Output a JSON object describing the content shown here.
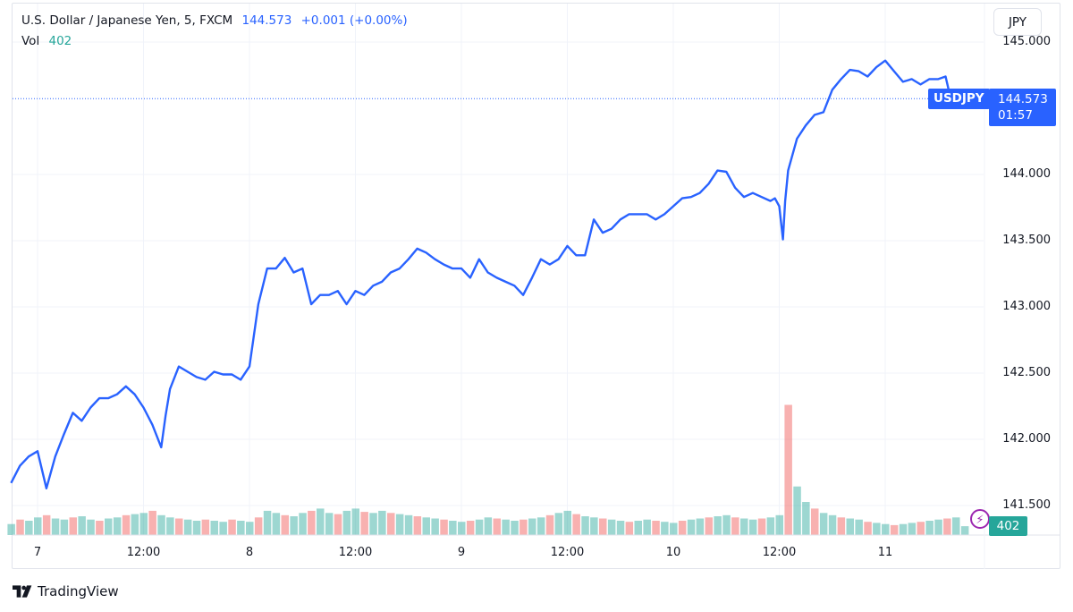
{
  "legend": {
    "title": "U.S. Dollar / Japanese Yen, 5, FXCM",
    "last": "144.573",
    "change": "+0.001 (+0.00%)",
    "vol_label": "Vol",
    "vol_value": "402"
  },
  "currency_button": "JPY",
  "symbol_tag": "USDJPY",
  "price_tag": {
    "price": "144.573",
    "countdown": "01:57"
  },
  "volume_tag": "402",
  "branding": "TradingView",
  "colors": {
    "line": "#2962ff",
    "up_volume": "#26a69a",
    "down_volume": "#ef5350",
    "grid": "#f0f3fa"
  },
  "icons": {
    "volume_alert": "lightning-bolt-icon",
    "logo": "tradingview-logo-icon"
  },
  "chart_data": {
    "type": "line",
    "title": "U.S. Dollar / Japanese Yen, 5, FXCM",
    "ylim": [
      141.4,
      145.27
    ],
    "grid": true,
    "y_ticks": [
      "145.000",
      "144.000",
      "143.500",
      "143.000",
      "142.500",
      "142.000",
      "141.500"
    ],
    "x_ticks": [
      {
        "t": "7 00:00",
        "label": "7"
      },
      {
        "t": "7 12:00",
        "label": "12:00"
      },
      {
        "t": "8 00:00",
        "label": "8"
      },
      {
        "t": "8 12:00",
        "label": "12:00"
      },
      {
        "t": "9 00:00",
        "label": "9"
      },
      {
        "t": "9 12:00",
        "label": "12:00"
      },
      {
        "t": "10 00:00",
        "label": "10"
      },
      {
        "t": "10 12:00",
        "label": "12:00"
      },
      {
        "t": "11 00:00",
        "label": "11"
      }
    ],
    "series": [
      {
        "x": [
          "6 21:00",
          "6 22:00",
          "6 23:00",
          "7 00:00",
          "7 01:00",
          "7 02:00",
          "7 03:00",
          "7 04:00",
          "7 05:00",
          "7 06:00",
          "7 07:00",
          "7 08:00",
          "7 09:00",
          "7 10:00",
          "7 11:00",
          "7 12:00",
          "7 13:00",
          "7 14:00",
          "7 14:30",
          "7 15:00",
          "7 16:00",
          "7 17:00",
          "7 18:00",
          "7 19:00",
          "7 20:00",
          "7 21:00",
          "7 22:00",
          "7 23:00",
          "8 00:00",
          "8 01:00",
          "8 02:00",
          "8 03:00",
          "8 04:00",
          "8 05:00",
          "8 06:00",
          "8 07:00",
          "8 08:00",
          "8 09:00",
          "8 10:00",
          "8 11:00",
          "8 12:00",
          "8 13:00",
          "8 14:00",
          "8 15:00",
          "8 16:00",
          "8 17:00",
          "8 18:00",
          "8 19:00",
          "8 20:00",
          "8 21:00",
          "8 22:00",
          "8 23:00",
          "9 00:00",
          "9 01:00",
          "9 02:00",
          "9 03:00",
          "9 04:00",
          "9 05:00",
          "9 06:00",
          "9 07:00",
          "9 08:00",
          "9 09:00",
          "9 10:00",
          "9 11:00",
          "9 12:00",
          "9 13:00",
          "9 14:00",
          "9 15:00",
          "9 16:00",
          "9 17:00",
          "9 18:00",
          "9 19:00",
          "9 20:00",
          "9 21:00",
          "9 22:00",
          "9 23:00",
          "10 00:00",
          "10 01:00",
          "10 02:00",
          "10 03:00",
          "10 04:00",
          "10 05:00",
          "10 06:00",
          "10 07:00",
          "10 08:00",
          "10 09:00",
          "10 10:00",
          "10 11:00",
          "10 11:30",
          "10 12:00",
          "10 12:25",
          "10 12:40",
          "10 13:00",
          "10 14:00",
          "10 15:00",
          "10 16:00",
          "10 17:00",
          "10 18:00",
          "10 19:00",
          "10 20:00",
          "10 21:00",
          "10 22:00",
          "10 23:00",
          "11 00:00",
          "11 01:00",
          "11 02:00",
          "11 03:00",
          "11 04:00",
          "11 05:00",
          "11 06:00",
          "11 06:50",
          "11 07:25"
        ],
        "y": [
          141.67,
          141.8,
          141.87,
          141.91,
          141.63,
          141.87,
          142.04,
          142.2,
          142.14,
          142.24,
          142.31,
          142.31,
          142.34,
          142.4,
          142.34,
          142.24,
          142.11,
          141.94,
          142.18,
          142.38,
          142.55,
          142.51,
          142.47,
          142.45,
          142.51,
          142.49,
          142.49,
          142.45,
          142.55,
          143.02,
          143.29,
          143.29,
          143.37,
          143.26,
          143.29,
          143.02,
          143.09,
          143.09,
          143.12,
          143.02,
          143.12,
          143.09,
          143.16,
          143.19,
          143.26,
          143.29,
          143.36,
          143.44,
          143.41,
          143.36,
          143.32,
          143.29,
          143.29,
          143.22,
          143.36,
          143.26,
          143.22,
          143.19,
          143.16,
          143.09,
          143.22,
          143.36,
          143.32,
          143.36,
          143.46,
          143.39,
          143.39,
          143.66,
          143.56,
          143.59,
          143.66,
          143.7,
          143.7,
          143.7,
          143.66,
          143.7,
          143.76,
          143.82,
          143.83,
          143.86,
          143.93,
          144.03,
          144.02,
          143.9,
          143.83,
          143.86,
          143.83,
          143.8,
          143.82,
          143.76,
          143.51,
          143.8,
          144.03,
          144.27,
          144.37,
          144.45,
          144.47,
          144.64,
          144.72,
          144.79,
          144.78,
          144.74,
          144.81,
          144.86,
          144.78,
          144.7,
          144.72,
          144.68,
          144.72,
          144.72,
          144.74,
          144.573
        ]
      }
    ],
    "volume": {
      "start": "6 21:00",
      "interval_hours": 1,
      "values": [
        500,
        700,
        650,
        800,
        900,
        750,
        700,
        800,
        850,
        700,
        650,
        750,
        800,
        900,
        950,
        1000,
        1100,
        900,
        800,
        750,
        700,
        650,
        700,
        650,
        600,
        700,
        650,
        600,
        800,
        1100,
        1000,
        900,
        850,
        1000,
        1100,
        1200,
        1000,
        950,
        1100,
        1200,
        1050,
        1000,
        1100,
        1000,
        950,
        900,
        850,
        800,
        750,
        700,
        650,
        600,
        650,
        700,
        800,
        750,
        700,
        650,
        700,
        750,
        800,
        900,
        1000,
        1100,
        950,
        850,
        800,
        750,
        700,
        650,
        600,
        650,
        700,
        650,
        600,
        550,
        650,
        700,
        750,
        800,
        850,
        900,
        800,
        750,
        700,
        750,
        800,
        900,
        5900,
        2200,
        1500,
        1200,
        1000,
        900,
        800,
        750,
        700,
        600,
        550,
        500,
        450,
        500,
        550,
        600,
        650,
        700,
        750,
        800,
        402
      ]
    }
  }
}
